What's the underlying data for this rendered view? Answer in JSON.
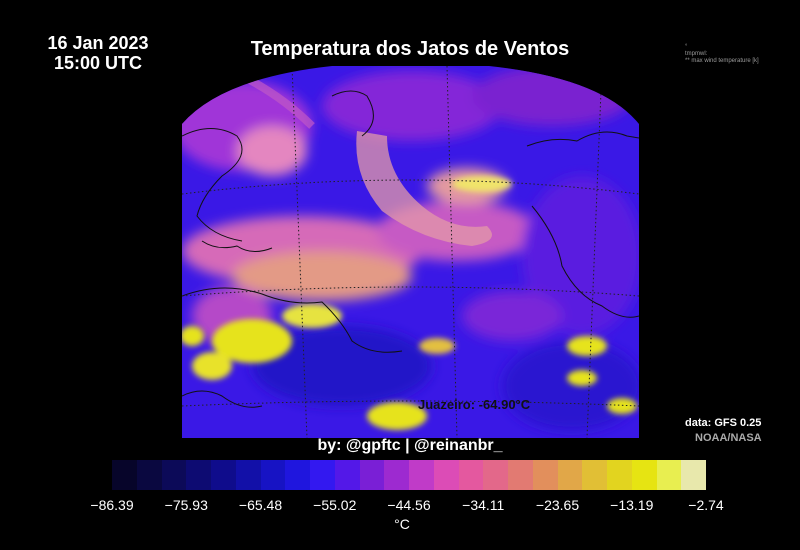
{
  "date_line1": "16 Jan 2023",
  "date_line2": "15:00 UTC",
  "title": "Temperatura dos Jatos de Ventos",
  "meta_line1": "°",
  "meta_line2": "tmpmwl:",
  "meta_line3": "** max wind temperature [k]",
  "station_label": "Juazeiro: -64.90°C",
  "source_line1": "data: GFS 0.25",
  "source_line2": "NOAA/NASA",
  "credit": "by: @gpftc | @reinanbr_",
  "colorbar": {
    "unit": "°C",
    "ticks": [
      "−86.39",
      "−75.93",
      "−65.48",
      "−55.02",
      "−44.56",
      "−34.11",
      "−23.65",
      "−13.19",
      "−2.74"
    ],
    "colors": [
      "#07052a",
      "#0a0840",
      "#0c0a58",
      "#0d0b72",
      "#0f0c8c",
      "#1210a8",
      "#1713c4",
      "#1f16de",
      "#3318f0",
      "#5318e8",
      "#7a1fd6",
      "#9d2ad0",
      "#c03bc8",
      "#dc4cb6",
      "#e4589f",
      "#e3688a",
      "#e27a72",
      "#e28f5c",
      "#e1a748",
      "#e1bf35",
      "#e2d41f",
      "#e6e412",
      "#e8ee50",
      "#e8e8ac"
    ]
  }
}
